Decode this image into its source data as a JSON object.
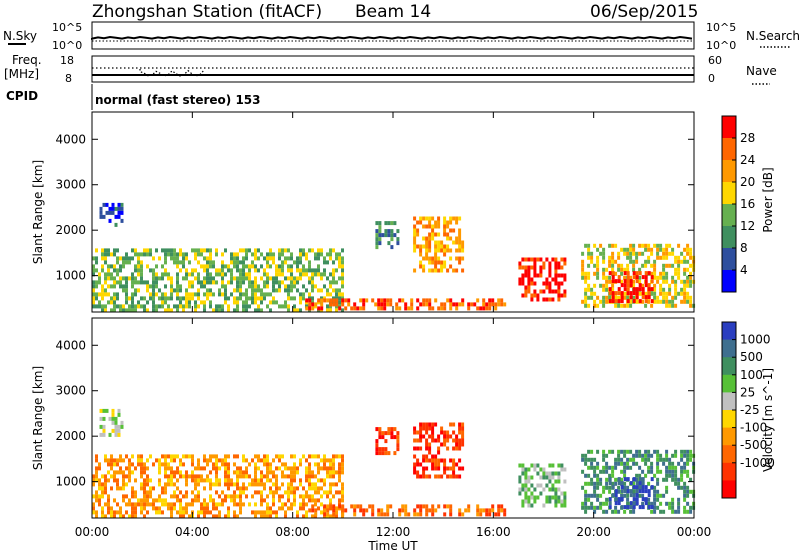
{
  "header": {
    "station": "Zhongshan Station (fitACF)",
    "beam": "Beam 14",
    "date": "06/Sep/2015"
  },
  "strip_panels": {
    "nsky_label": "N.Sky",
    "nsearch_label": "N.Search",
    "noise_left_ticks": [
      "10^5",
      "10^0"
    ],
    "noise_right_ticks": [
      "10^5",
      "10^0"
    ],
    "freq_label_1": "Freq.",
    "freq_label_2": "[MHz]",
    "freq_ticks": [
      "18",
      "8"
    ],
    "nave_label": "Nave",
    "nave_ticks": [
      "60",
      "0"
    ],
    "cpid_label": "CPID",
    "cpid_text": "normal (fast stereo) 153"
  },
  "colors": {
    "power_scale": [
      "#0000ff",
      "#2e4f9e",
      "#3f8f5f",
      "#66b050",
      "#ffd700",
      "#ff9900",
      "#ff6600",
      "#ff0000"
    ],
    "velocity_scale": [
      "#2a3ec0",
      "#3f6f8f",
      "#3f8f5f",
      "#57c037",
      "#c0c0c0",
      "#ffd700",
      "#ff9900",
      "#ff6600",
      "#ff3300",
      "#ff0000"
    ]
  },
  "chart_data": [
    {
      "type": "heatmap",
      "title": "Power",
      "xlabel": "",
      "ylabel": "Slant Range [km]",
      "xlim": [
        "00:00",
        "00:00"
      ],
      "ylim": [
        200,
        4600
      ],
      "y_ticks": [
        "1000",
        "2000",
        "3000",
        "4000"
      ],
      "colorbar_label": "Power [dB]",
      "colorbar_ticks": [
        "4",
        "8",
        "12",
        "16",
        "20",
        "24",
        "28"
      ],
      "echo_regions_description_free": true,
      "regions": [
        {
          "t0": 0.0,
          "t1": 10.0,
          "r0": 250,
          "r1": 1600,
          "level": 3
        },
        {
          "t0": 0.3,
          "t1": 1.2,
          "r0": 2100,
          "r1": 2600,
          "level": 1
        },
        {
          "t0": 8.5,
          "t1": 16.5,
          "r0": 250,
          "r1": 500,
          "level": 6
        },
        {
          "t0": 11.3,
          "t1": 12.2,
          "r0": 1600,
          "r1": 2200,
          "level": 2
        },
        {
          "t0": 12.8,
          "t1": 14.8,
          "r0": 1100,
          "r1": 2300,
          "level": 5
        },
        {
          "t0": 17.0,
          "t1": 18.8,
          "r0": 500,
          "r1": 1400,
          "level": 7
        },
        {
          "t0": 19.5,
          "t1": 24.0,
          "r0": 300,
          "r1": 1700,
          "level": 4
        },
        {
          "t0": 20.6,
          "t1": 22.3,
          "r0": 400,
          "r1": 1100,
          "level": 7
        }
      ]
    },
    {
      "type": "heatmap",
      "title": "Velocity",
      "xlabel": "Time UT",
      "ylabel": "Slant Range [km]",
      "xlim": [
        "00:00",
        "00:00"
      ],
      "ylim": [
        200,
        4600
      ],
      "x_ticks": [
        "00:00",
        "04:00",
        "08:00",
        "12:00",
        "16:00",
        "20:00",
        "00:00"
      ],
      "y_ticks": [
        "1000",
        "2000",
        "3000",
        "4000"
      ],
      "colorbar_label": "Velocity [m s^-1]",
      "colorbar_ticks": [
        "1000",
        "500",
        "100",
        "25",
        "-25",
        "-100",
        "-500",
        "-1000"
      ],
      "regions": [
        {
          "t0": 0.0,
          "t1": 10.0,
          "r0": 250,
          "r1": 1600,
          "level": 6
        },
        {
          "t0": 0.3,
          "t1": 1.2,
          "r0": 2000,
          "r1": 2600,
          "level": 4
        },
        {
          "t0": 8.5,
          "t1": 16.5,
          "r0": 250,
          "r1": 500,
          "level": 7
        },
        {
          "t0": 11.3,
          "t1": 12.2,
          "r0": 1600,
          "r1": 2200,
          "level": 8
        },
        {
          "t0": 12.8,
          "t1": 14.8,
          "r0": 1100,
          "r1": 2300,
          "level": 8
        },
        {
          "t0": 17.0,
          "t1": 18.8,
          "r0": 500,
          "r1": 1400,
          "level": 3
        },
        {
          "t0": 19.5,
          "t1": 24.0,
          "r0": 300,
          "r1": 1700,
          "level": 2
        },
        {
          "t0": 20.6,
          "t1": 22.3,
          "r0": 400,
          "r1": 1100,
          "level": 0
        }
      ]
    }
  ]
}
